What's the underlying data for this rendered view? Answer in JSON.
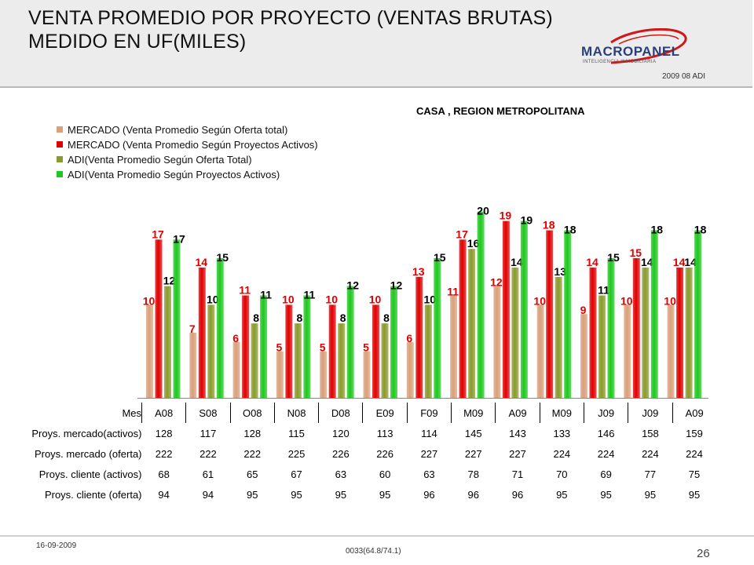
{
  "header": {
    "title_line1": "VENTA PROMEDIO POR PROYECTO (VENTAS BRUTAS)",
    "title_line2": "MEDIDO EN UF(MILES)",
    "logo_text": "MACROPANEL",
    "logo_tagline": "INTELIGENCIA INMOBILIARIA",
    "code": "2009 08 ADI"
  },
  "footer": {
    "date": "16-09-2009",
    "code": "0033(64.8/74.1)",
    "page": "26"
  },
  "chart_data": {
    "type": "bar",
    "title": "CASA , REGION METROPOLITANA",
    "categories": [
      "A08",
      "S08",
      "O08",
      "N08",
      "D08",
      "E09",
      "F09",
      "M09",
      "A09",
      "M09",
      "J09",
      "J09",
      "A09"
    ],
    "series": [
      {
        "name": "MERCADO (Venta Promedio Según Oferta total)",
        "color": "#d9a07a",
        "label_color": "#e00000",
        "values": [
          10,
          7,
          6,
          5,
          5,
          5,
          6,
          11,
          12,
          10,
          9,
          10,
          10
        ]
      },
      {
        "name": "MERCADO (Venta Promedio Según Proyectos Activos)",
        "color": "#e00000",
        "label_color": "#e00000",
        "values": [
          17,
          14,
          11,
          10,
          10,
          10,
          13,
          17,
          19,
          18,
          14,
          15,
          14
        ]
      },
      {
        "name": "ADI(Venta Promedio Según Oferta Total)",
        "color": "#8a9a2c",
        "label_color": "#000000",
        "values": [
          12,
          10,
          8,
          8,
          8,
          8,
          10,
          16,
          14,
          13,
          11,
          14,
          14
        ]
      },
      {
        "name": "ADI(Venta Promedio Según Proyectos Activos)",
        "color": "#1ec81e",
        "label_color": "#000000",
        "values": [
          17,
          15,
          11,
          11,
          12,
          12,
          15,
          20,
          19,
          18,
          15,
          18,
          18
        ]
      }
    ],
    "ylim": [
      0,
      22
    ],
    "grid": false,
    "legend_position": "top-left",
    "table": {
      "header_label": "Mes",
      "rows": [
        {
          "label": "Proys.  mercado(activos)",
          "values": [
            "128",
            "117",
            "128",
            "115",
            "120",
            "113",
            "114",
            "145",
            "143",
            "133",
            "146",
            "158",
            "159"
          ]
        },
        {
          "label": "Proys.  mercado (oferta)",
          "values": [
            "222",
            "222",
            "222",
            "225",
            "226",
            "226",
            "227",
            "227",
            "227",
            "224",
            "224",
            "224",
            "224"
          ]
        },
        {
          "label": "Proys.   cliente  (activos)",
          "values": [
            "68",
            "61",
            "65",
            "67",
            "63",
            "60",
            "63",
            "78",
            "71",
            "70",
            "69",
            "77",
            "75"
          ]
        },
        {
          "label": "Proys.   cliente   (oferta)",
          "values": [
            "94",
            "94",
            "95",
            "95",
            "95",
            "95",
            "96",
            "96",
            "96",
            "95",
            "95",
            "95",
            "95"
          ]
        }
      ]
    }
  }
}
